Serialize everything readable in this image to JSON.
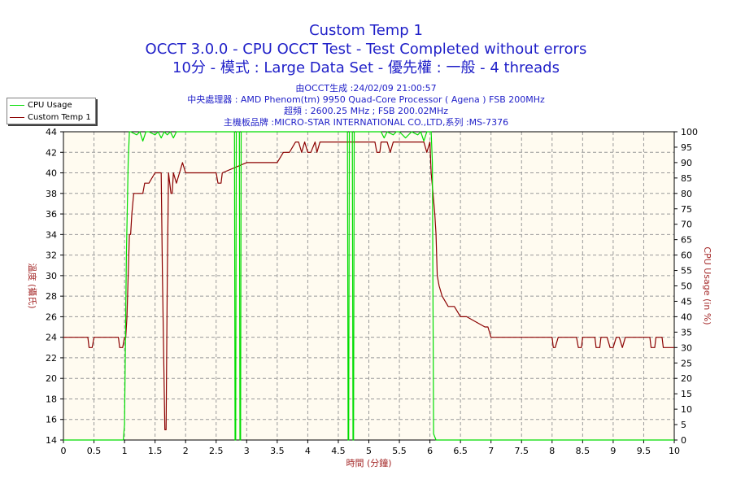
{
  "header": {
    "title": "Custom Temp 1",
    "subtitle": "OCCT 3.0.0 - CPU OCCT Test - Test Completed without errors",
    "subtitle2": "10分 - 模式 : Large Data Set - 優先權 : 一般 - 4 threads"
  },
  "info": {
    "line1": "由OCCT生成 :24/02/09 21:00:57",
    "line2": "中央處理器 : AMD Phenom(tm) 9950 Quad-Core Processor ( Agena ) FSB 200MHz",
    "line3": "超頻 : 2600.25 MHz ; FSB 200.02MHz",
    "line4": "主機板品牌 :MICRO-STAR INTERNATIONAL CO.,LTD,系列 :MS-7376"
  },
  "legend": {
    "cpu_usage": "CPU Usage",
    "custom_temp": "Custom Temp 1"
  },
  "colors": {
    "cpu_usage": "#00dd00",
    "custom_temp": "#8b0000",
    "plot_bg": "#fffbf0",
    "title": "#1f1fc8",
    "axis_label": "#a52a2a"
  },
  "chart_data": {
    "type": "line",
    "xlabel": "時間 (分鐘)",
    "ylabel_left": "溫度 (攝氏)",
    "ylabel_right": "CPU Usage (in %)",
    "xlim": [
      0,
      10
    ],
    "ylim_left": [
      14,
      44
    ],
    "ylim_right": [
      0,
      100
    ],
    "grid": true,
    "x_ticks": [
      "0",
      "0.5",
      "1",
      "1.5",
      "2",
      "2.5",
      "3",
      "3.5",
      "4",
      "4.5",
      "5",
      "5.5",
      "6",
      "6.5",
      "7",
      "7.5",
      "8",
      "8.5",
      "9",
      "9.5",
      "10"
    ],
    "y_ticks_left": [
      "14",
      "16",
      "18",
      "20",
      "22",
      "24",
      "26",
      "28",
      "30",
      "32",
      "34",
      "36",
      "38",
      "40",
      "42",
      "44"
    ],
    "y_ticks_right": [
      "0",
      "5",
      "10",
      "15",
      "20",
      "25",
      "30",
      "35",
      "40",
      "45",
      "50",
      "55",
      "60",
      "65",
      "70",
      "75",
      "80",
      "85",
      "90",
      "95",
      "100"
    ],
    "series": [
      {
        "name": "Custom Temp 1",
        "axis": "left",
        "x": [
          0,
          0.4,
          0.42,
          0.47,
          0.5,
          0.52,
          0.9,
          0.92,
          0.97,
          1.0,
          1.02,
          1.04,
          1.06,
          1.08,
          1.1,
          1.12,
          1.15,
          1.2,
          1.3,
          1.33,
          1.4,
          1.5,
          1.52,
          1.6,
          1.62,
          1.66,
          1.68,
          1.7,
          1.72,
          1.76,
          1.78,
          1.8,
          1.85,
          1.9,
          1.95,
          2.0,
          2.5,
          2.53,
          2.58,
          2.6,
          3.0,
          3.5,
          3.6,
          3.63,
          3.7,
          3.8,
          3.85,
          3.9,
          3.95,
          4.0,
          4.05,
          4.12,
          4.15,
          4.2,
          4.25,
          5.1,
          5.13,
          5.18,
          5.2,
          5.3,
          5.35,
          5.4,
          5.45,
          5.9,
          5.95,
          6.0,
          6.02,
          6.05,
          6.08,
          6.1,
          6.12,
          6.15,
          6.2,
          6.3,
          6.4,
          6.5,
          6.55,
          6.6,
          6.9,
          6.95,
          7.0,
          8.0,
          8.02,
          8.05,
          8.1,
          8.4,
          8.43,
          8.48,
          8.5,
          8.7,
          8.72,
          8.78,
          8.8,
          8.9,
          8.95,
          9.0,
          9.05,
          9.1,
          9.15,
          9.2,
          9.6,
          9.62,
          9.68,
          9.7,
          9.8,
          9.82,
          10.0
        ],
        "values": [
          24,
          24,
          23,
          23,
          24,
          24,
          24,
          23,
          23,
          24,
          24,
          26,
          30,
          34,
          34,
          36,
          38,
          38,
          38,
          39,
          39,
          40,
          40,
          40,
          30,
          15,
          15,
          30,
          40,
          38,
          38,
          40,
          39,
          40,
          41,
          40,
          40,
          39,
          39,
          40,
          41,
          41,
          42,
          42,
          42,
          43,
          43,
          42,
          43,
          42,
          42,
          43,
          42,
          43,
          43,
          43,
          42,
          42,
          43,
          43,
          42,
          43,
          43,
          43,
          42,
          43,
          40,
          38,
          36,
          34,
          30,
          29,
          28,
          27,
          27,
          26,
          26,
          26,
          25,
          25,
          24,
          24,
          23,
          23,
          24,
          24,
          23,
          23,
          24,
          24,
          23,
          23,
          24,
          24,
          23,
          23,
          24,
          24,
          23,
          24,
          24,
          23,
          23,
          24,
          24,
          23,
          23
        ]
      },
      {
        "name": "CPU Usage",
        "axis": "right",
        "x": [
          0,
          0.98,
          1.0,
          1.03,
          1.06,
          1.08,
          1.1,
          1.2,
          1.25,
          1.3,
          1.35,
          1.4,
          1.5,
          1.55,
          1.6,
          1.65,
          1.7,
          1.75,
          1.8,
          1.85,
          1.9,
          2.0,
          2.5,
          2.8,
          2.81,
          2.82,
          2.83,
          2.88,
          2.89,
          2.9,
          2.91,
          3.0,
          3.5,
          4.0,
          4.5,
          4.65,
          4.66,
          4.67,
          4.68,
          4.73,
          4.74,
          4.75,
          4.76,
          5.0,
          5.2,
          5.25,
          5.3,
          5.4,
          5.45,
          5.5,
          5.6,
          5.7,
          5.8,
          5.85,
          5.9,
          5.95,
          6.0,
          6.02,
          6.04,
          6.06,
          6.1,
          10.0
        ],
        "values": [
          0,
          0,
          5,
          60,
          90,
          100,
          100,
          99,
          100,
          97,
          100,
          100,
          99,
          100,
          98,
          100,
          99,
          100,
          98,
          100,
          100,
          100,
          100,
          100,
          0,
          0,
          100,
          100,
          0,
          0,
          100,
          100,
          100,
          100,
          100,
          100,
          0,
          0,
          100,
          100,
          0,
          0,
          100,
          100,
          100,
          98,
          100,
          99,
          100,
          100,
          98,
          100,
          99,
          100,
          97,
          100,
          100,
          100,
          90,
          2,
          0,
          0
        ]
      }
    ]
  }
}
